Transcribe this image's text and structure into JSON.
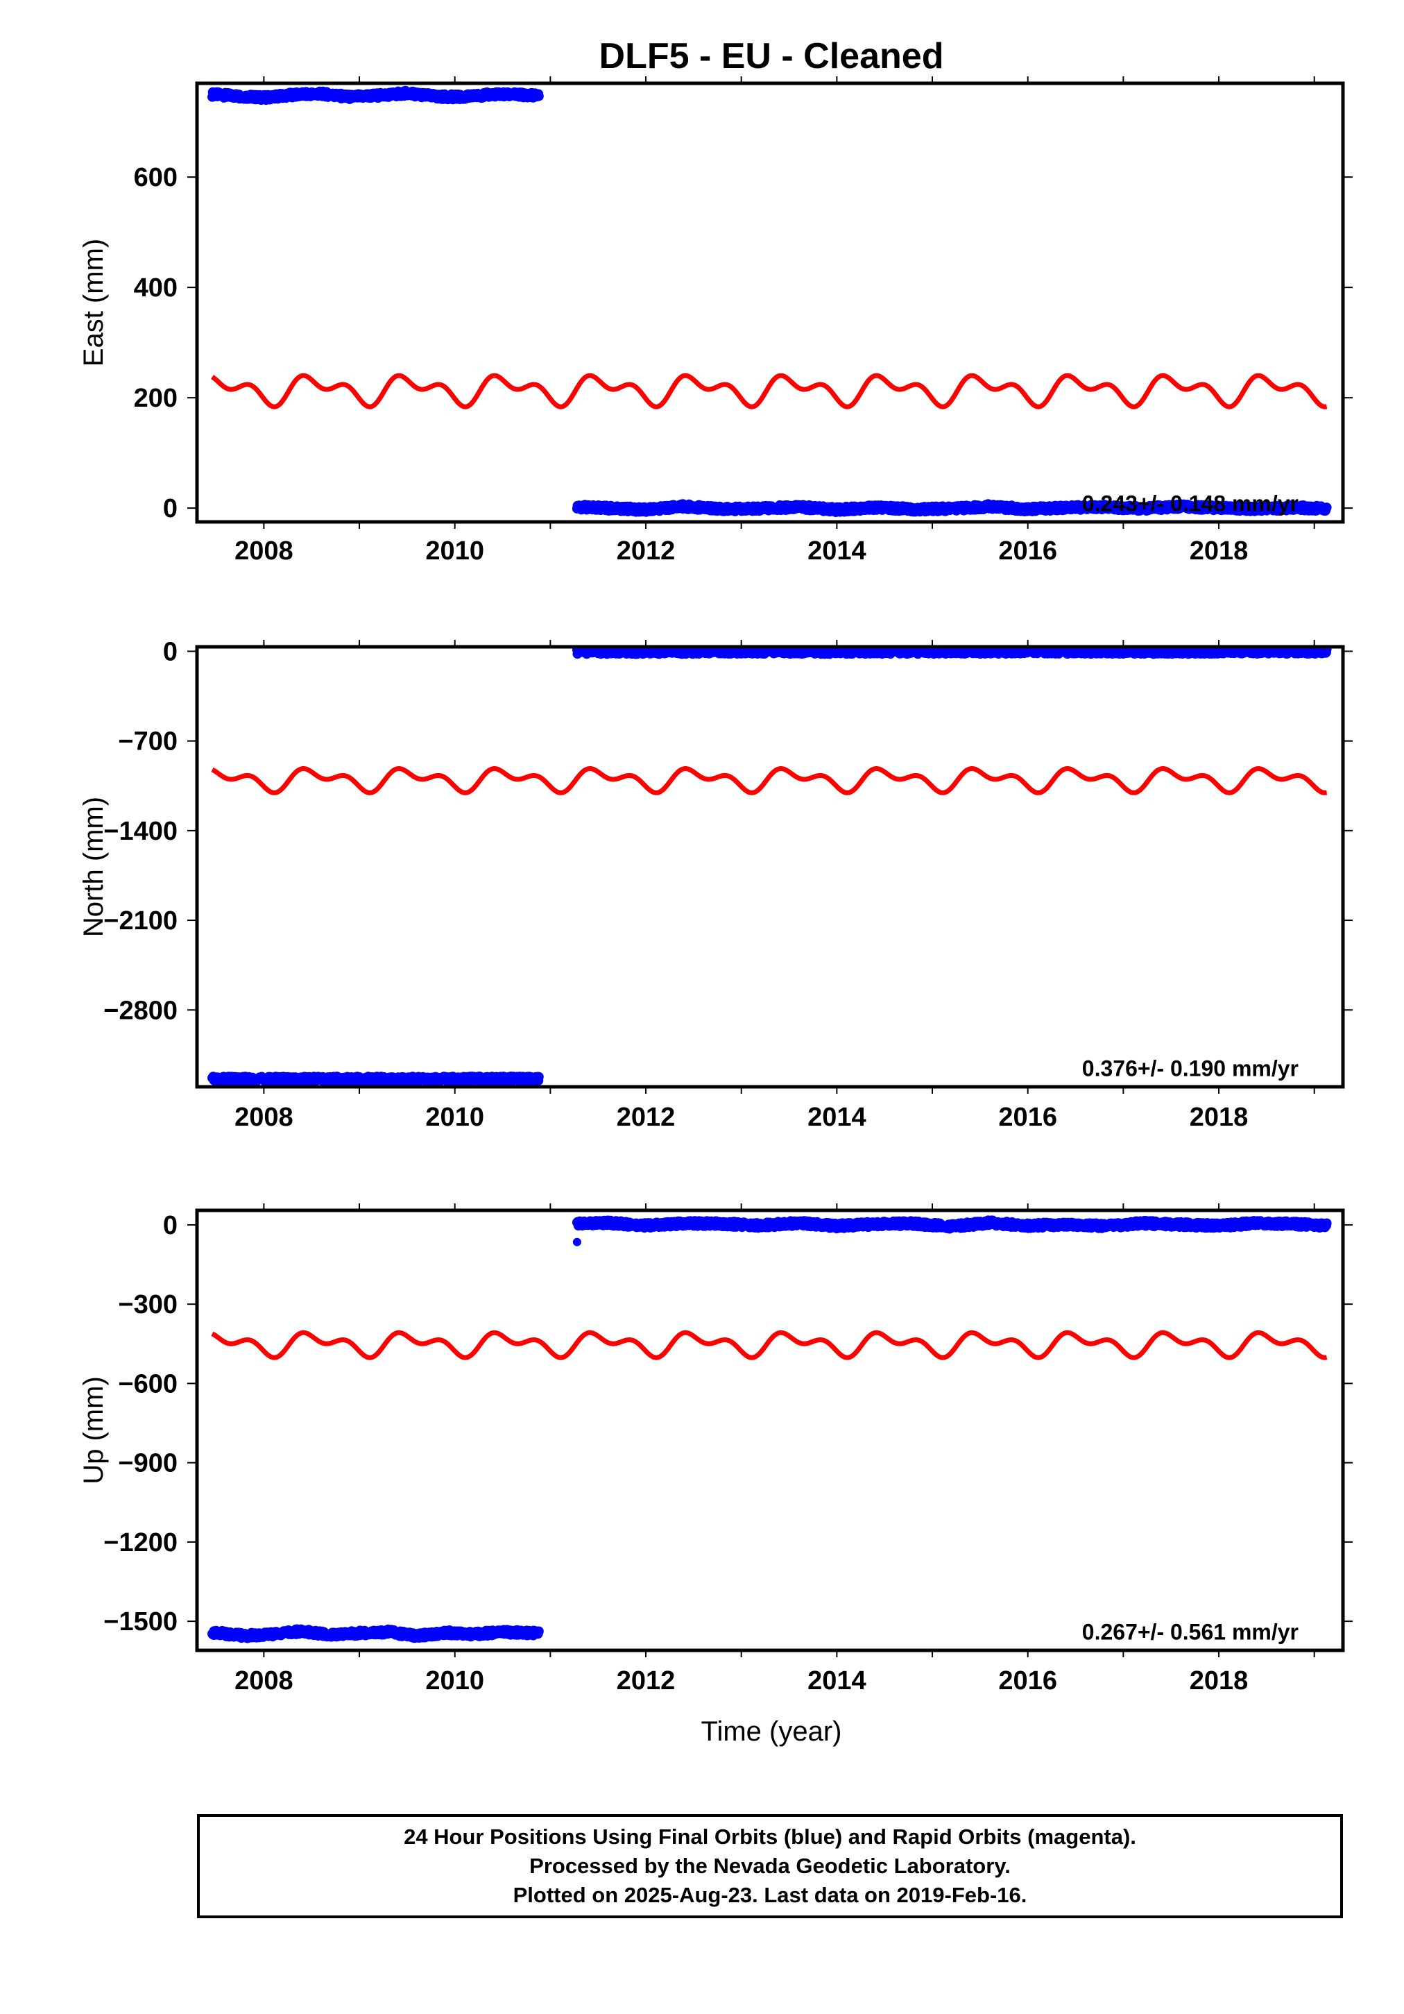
{
  "chart_data": {
    "type": "scatter",
    "title": "DLF5  - EU - Cleaned",
    "xlabel": "Time (year)",
    "xlim": [
      2007.3,
      2019.3
    ],
    "x_ticks": [
      "2008",
      "2010",
      "2012",
      "2014",
      "2016",
      "2018"
    ],
    "colors": {
      "final_orbits": "#0000ff",
      "seasonal_model": "#ff0000",
      "axes": "#000000"
    },
    "panels": [
      {
        "name": "east",
        "ylabel": "East (mm)",
        "ylim": [
          -25,
          770
        ],
        "y_ticks": [
          "0",
          "200",
          "400",
          "600"
        ],
        "y_tick_values": [
          0,
          200,
          400,
          600
        ],
        "rate_text": "0.243+/- 0.148 mm/yr",
        "series": [
          {
            "x": [
              2007.46,
              2007.7,
              2008.0,
              2008.3,
              2008.6,
              2008.9,
              2009.2,
              2009.5,
              2009.8,
              2010.1,
              2010.4,
              2010.7,
              2010.88
            ],
            "y": [
              750,
              747,
              744,
              749,
              751,
              745,
              748,
              752,
              746,
              745,
              750,
              749,
              748
            ]
          },
          {
            "x": [
              2011.28,
              2011.6,
              2012.0,
              2012.4,
              2012.8,
              2013.2,
              2013.6,
              2014.0,
              2014.4,
              2014.8,
              2015.2,
              2015.6,
              2016.0,
              2016.4,
              2016.8,
              2017.2,
              2017.6,
              2018.0,
              2018.4,
              2018.8,
              2019.13
            ],
            "y": [
              2,
              0,
              -3,
              3,
              -2,
              -1,
              2,
              -3,
              1,
              -2,
              -1,
              3,
              -2,
              1,
              2,
              -1,
              3,
              0,
              -2,
              1,
              -1
            ]
          },
          {
            "model": "seasonal",
            "offset": 215,
            "annual_amplitude": 18,
            "semiannual_amplitude": 15,
            "x_range": [
              2007.46,
              2019.13
            ]
          }
        ]
      },
      {
        "name": "north",
        "ylabel": "North (mm)",
        "ylim": [
          -3400,
          35
        ],
        "y_ticks": [
          "0",
          "−700",
          "−1400",
          "−2100",
          "−2800"
        ],
        "y_tick_values": [
          0,
          -700,
          -1400,
          -2100,
          -2800
        ],
        "rate_text": "0.376+/- 0.190 mm/yr",
        "series": [
          {
            "x": [
              2007.46,
              2008.0,
              2008.5,
              2009.0,
              2009.5,
              2010.0,
              2010.5,
              2010.88
            ],
            "y": [
              -3340,
              -3341,
              -3339,
              -3340,
              -3341,
              -3339,
              -3340,
              -3340
            ]
          },
          {
            "x": [
              2011.28,
              2012.0,
              2013.0,
              2014.0,
              2015.0,
              2016.0,
              2017.0,
              2018.0,
              2019.13
            ],
            "y": [
              0,
              -2,
              1,
              -1,
              0,
              1,
              -1,
              0,
              1
            ]
          },
          {
            "model": "seasonal",
            "offset": -1000,
            "annual_amplitude": 60,
            "semiannual_amplitude": 50,
            "x_range": [
              2007.46,
              2019.13
            ]
          }
        ]
      },
      {
        "name": "up",
        "ylabel": "Up (mm)",
        "ylim": [
          -1610,
          55
        ],
        "y_ticks": [
          "0",
          "−300",
          "−600",
          "−900",
          "−1200",
          "−1500"
        ],
        "y_tick_values": [
          0,
          -300,
          -600,
          -900,
          -1200,
          -1500
        ],
        "rate_text": "0.267+/- 0.561 mm/yr",
        "series": [
          {
            "x": [
              2007.46,
              2007.8,
              2008.1,
              2008.4,
              2008.7,
              2009.0,
              2009.3,
              2009.6,
              2009.9,
              2010.2,
              2010.5,
              2010.88
            ],
            "y": [
              -1542,
              -1555,
              -1548,
              -1538,
              -1552,
              -1545,
              -1540,
              -1556,
              -1543,
              -1549,
              -1541,
              -1545
            ]
          },
          {
            "x": [
              2011.28,
              2011.6,
              2012.0,
              2012.4,
              2012.8,
              2013.2,
              2013.6,
              2014.0,
              2014.4,
              2014.8,
              2015.2,
              2015.6,
              2016.0,
              2016.4,
              2016.8,
              2017.2,
              2017.6,
              2018.0,
              2018.4,
              2018.8,
              2019.13
            ],
            "y": [
              5,
              8,
              -3,
              6,
              4,
              -2,
              7,
              -4,
              3,
              5,
              -6,
              8,
              -3,
              2,
              -5,
              6,
              1,
              -4,
              7,
              3,
              -2
            ]
          },
          {
            "outliers": [
              [
                2011.28,
                -65
              ]
            ]
          },
          {
            "model": "seasonal",
            "offset": -450,
            "annual_amplitude": 30,
            "semiannual_amplitude": 25,
            "x_range": [
              2007.46,
              2019.13
            ]
          }
        ]
      }
    ]
  },
  "footer": {
    "line1": "24 Hour Positions Using Final Orbits (blue) and Rapid Orbits (magenta).",
    "line2": "Processed by the Nevada Geodetic Laboratory.",
    "line3": "Plotted on 2025-Aug-23. Last data on 2019-Feb-16."
  }
}
